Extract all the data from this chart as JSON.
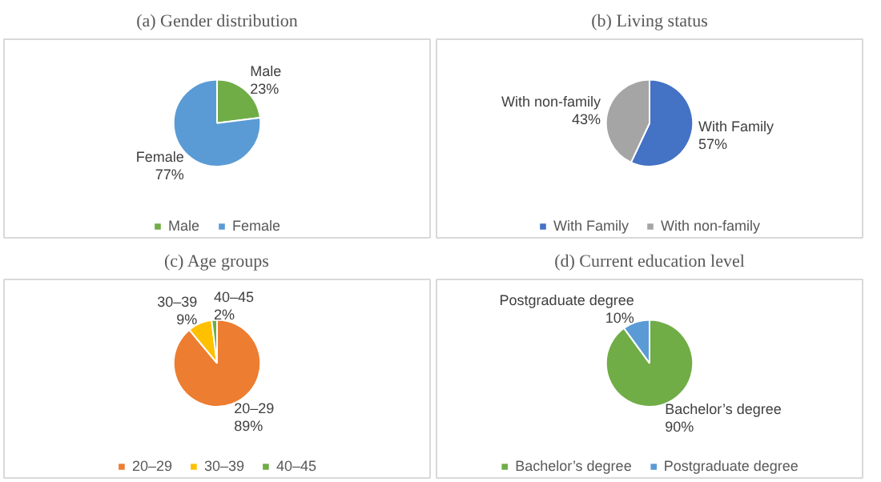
{
  "chart_data": [
    {
      "type": "pie",
      "title": "(a) Gender distribution",
      "categories": [
        "Male",
        "Female"
      ],
      "values": [
        23,
        77
      ],
      "colors": [
        "#70ad47",
        "#5b9bd5"
      ],
      "value_labels": [
        "23%",
        "77%"
      ],
      "legend": "bottom"
    },
    {
      "type": "pie",
      "title": "(b) Living status",
      "categories": [
        "With Family",
        "With non-family"
      ],
      "values": [
        57,
        43
      ],
      "colors": [
        "#4472c4",
        "#a5a5a5"
      ],
      "value_labels": [
        "57%",
        "43%"
      ],
      "legend": "bottom"
    },
    {
      "type": "pie",
      "title": "(c) Age groups",
      "categories": [
        "20–29",
        "30–39",
        "40–45"
      ],
      "values": [
        89,
        9,
        2
      ],
      "colors": [
        "#ed7d31",
        "#ffc000",
        "#70ad47"
      ],
      "value_labels": [
        "89%",
        "9%",
        "2%"
      ],
      "legend": "bottom"
    },
    {
      "type": "pie",
      "title": "(d) Current education level",
      "categories": [
        "Bachelor’s degree",
        "Postgraduate degree"
      ],
      "values": [
        90,
        10
      ],
      "colors": [
        "#70ad47",
        "#5b9bd5"
      ],
      "value_labels": [
        "90%",
        "10%"
      ],
      "legend": "bottom"
    }
  ]
}
